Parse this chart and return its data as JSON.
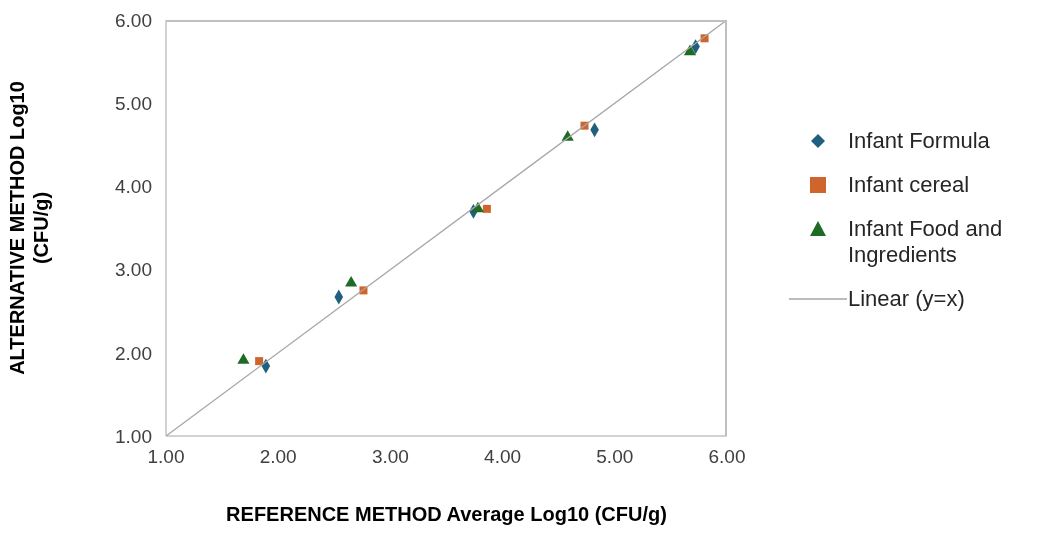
{
  "chart_data": {
    "type": "scatter",
    "xlabel": "REFERENCE METHOD Average Log10 (CFU/g)",
    "ylabel": "ALTERNATIVE METHOD Log10 (CFU/g)",
    "xlim": [
      1,
      6
    ],
    "ylim": [
      1,
      6
    ],
    "xticks": [
      {
        "value": 1,
        "label": "1.00"
      },
      {
        "value": 2,
        "label": "2.00"
      },
      {
        "value": 3,
        "label": "3.00"
      },
      {
        "value": 4,
        "label": "4.00"
      },
      {
        "value": 5,
        "label": "5.00"
      },
      {
        "value": 6,
        "label": "6.00"
      }
    ],
    "yticks": [
      {
        "value": 1,
        "label": "1.00"
      },
      {
        "value": 2,
        "label": "2.00"
      },
      {
        "value": 3,
        "label": "3.00"
      },
      {
        "value": 4,
        "label": "4.00"
      },
      {
        "value": 5,
        "label": "5.00"
      },
      {
        "value": 6,
        "label": "6.00"
      }
    ],
    "grid": false,
    "legend": "right",
    "series": [
      {
        "name": "Infant Formula",
        "color": "#1f5f7f",
        "marker": "diamond",
        "x": [
          1.89,
          2.54,
          3.74,
          4.82,
          5.72
        ],
        "values": [
          1.84,
          2.67,
          3.7,
          4.68,
          5.68
        ]
      },
      {
        "name": "Infant cereal",
        "color": "#d0652c",
        "marker": "square",
        "x": [
          1.83,
          2.76,
          3.86,
          4.73,
          5.8
        ],
        "values": [
          1.9,
          2.75,
          3.73,
          4.73,
          5.78
        ]
      },
      {
        "name": "Infant Food and Ingredients",
        "color": "#1e6b25",
        "marker": "triangle",
        "x": [
          1.69,
          2.65,
          3.78,
          4.58,
          5.67
        ],
        "values": [
          1.91,
          2.84,
          3.73,
          4.59,
          5.62
        ]
      },
      {
        "name": "Linear (y=x)",
        "type": "line",
        "color": "#a6a6a6",
        "marker": "none",
        "line_style": "solid",
        "x": [
          1,
          6
        ],
        "values": [
          1,
          6
        ]
      }
    ]
  }
}
